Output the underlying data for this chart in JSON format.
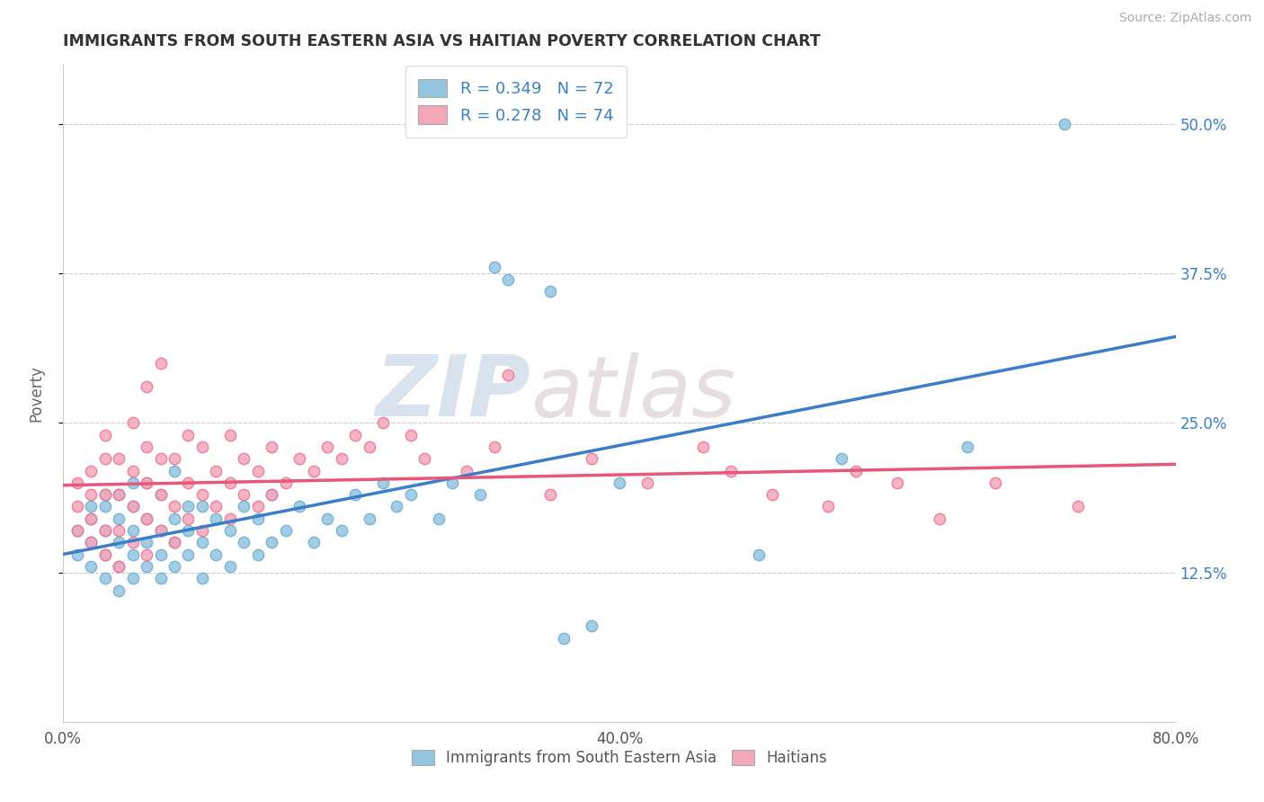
{
  "title": "IMMIGRANTS FROM SOUTH EASTERN ASIA VS HAITIAN POVERTY CORRELATION CHART",
  "source_text": "Source: ZipAtlas.com",
  "ylabel": "Poverty",
  "xlim": [
    0.0,
    0.8
  ],
  "ylim": [
    0.0,
    0.55
  ],
  "xtick_labels": [
    "0.0%",
    "",
    "",
    "",
    "40.0%",
    "",
    "",
    "",
    "80.0%"
  ],
  "xtick_positions": [
    0.0,
    0.1,
    0.2,
    0.3,
    0.4,
    0.5,
    0.6,
    0.7,
    0.8
  ],
  "ytick_labels": [
    "12.5%",
    "25.0%",
    "37.5%",
    "50.0%"
  ],
  "ytick_positions": [
    0.125,
    0.25,
    0.375,
    0.5
  ],
  "watermark_zip": "ZIP",
  "watermark_atlas": "atlas",
  "blue_color": "#92C5DE",
  "pink_color": "#F4A7B9",
  "blue_line_color": "#3A7DC9",
  "pink_line_color": "#E8567A",
  "blue_edge_color": "#6aadd5",
  "pink_edge_color": "#f07090",
  "legend_R_color": "#3B82C4",
  "R_blue": 0.349,
  "N_blue": 72,
  "R_pink": 0.278,
  "N_pink": 74,
  "blue_scatter_x": [
    0.01,
    0.01,
    0.02,
    0.02,
    0.02,
    0.02,
    0.03,
    0.03,
    0.03,
    0.03,
    0.03,
    0.04,
    0.04,
    0.04,
    0.04,
    0.04,
    0.05,
    0.05,
    0.05,
    0.05,
    0.05,
    0.06,
    0.06,
    0.06,
    0.06,
    0.07,
    0.07,
    0.07,
    0.07,
    0.08,
    0.08,
    0.08,
    0.08,
    0.09,
    0.09,
    0.09,
    0.1,
    0.1,
    0.1,
    0.11,
    0.11,
    0.12,
    0.12,
    0.13,
    0.13,
    0.14,
    0.14,
    0.15,
    0.15,
    0.16,
    0.17,
    0.18,
    0.19,
    0.2,
    0.21,
    0.22,
    0.23,
    0.24,
    0.25,
    0.27,
    0.28,
    0.3,
    0.31,
    0.32,
    0.35,
    0.36,
    0.38,
    0.4,
    0.5,
    0.56,
    0.65,
    0.72
  ],
  "blue_scatter_y": [
    0.14,
    0.16,
    0.13,
    0.15,
    0.17,
    0.18,
    0.12,
    0.14,
    0.16,
    0.18,
    0.19,
    0.11,
    0.13,
    0.15,
    0.17,
    0.19,
    0.12,
    0.14,
    0.16,
    0.18,
    0.2,
    0.13,
    0.15,
    0.17,
    0.2,
    0.12,
    0.14,
    0.16,
    0.19,
    0.13,
    0.15,
    0.17,
    0.21,
    0.14,
    0.16,
    0.18,
    0.12,
    0.15,
    0.18,
    0.14,
    0.17,
    0.13,
    0.16,
    0.15,
    0.18,
    0.14,
    0.17,
    0.15,
    0.19,
    0.16,
    0.18,
    0.15,
    0.17,
    0.16,
    0.19,
    0.17,
    0.2,
    0.18,
    0.19,
    0.17,
    0.2,
    0.19,
    0.38,
    0.37,
    0.36,
    0.07,
    0.08,
    0.2,
    0.14,
    0.22,
    0.23,
    0.5
  ],
  "pink_scatter_x": [
    0.01,
    0.01,
    0.01,
    0.02,
    0.02,
    0.02,
    0.02,
    0.03,
    0.03,
    0.03,
    0.03,
    0.03,
    0.04,
    0.04,
    0.04,
    0.04,
    0.05,
    0.05,
    0.05,
    0.05,
    0.06,
    0.06,
    0.06,
    0.06,
    0.06,
    0.07,
    0.07,
    0.07,
    0.07,
    0.08,
    0.08,
    0.08,
    0.09,
    0.09,
    0.09,
    0.1,
    0.1,
    0.1,
    0.11,
    0.11,
    0.12,
    0.12,
    0.12,
    0.13,
    0.13,
    0.14,
    0.14,
    0.15,
    0.15,
    0.16,
    0.17,
    0.18,
    0.19,
    0.2,
    0.21,
    0.22,
    0.23,
    0.25,
    0.26,
    0.29,
    0.31,
    0.32,
    0.35,
    0.38,
    0.42,
    0.46,
    0.48,
    0.51,
    0.55,
    0.57,
    0.6,
    0.63,
    0.67,
    0.73
  ],
  "pink_scatter_y": [
    0.16,
    0.18,
    0.2,
    0.15,
    0.17,
    0.19,
    0.21,
    0.14,
    0.16,
    0.19,
    0.22,
    0.24,
    0.13,
    0.16,
    0.19,
    0.22,
    0.15,
    0.18,
    0.21,
    0.25,
    0.14,
    0.17,
    0.2,
    0.23,
    0.28,
    0.16,
    0.19,
    0.22,
    0.3,
    0.15,
    0.18,
    0.22,
    0.17,
    0.2,
    0.24,
    0.16,
    0.19,
    0.23,
    0.18,
    0.21,
    0.17,
    0.2,
    0.24,
    0.19,
    0.22,
    0.18,
    0.21,
    0.19,
    0.23,
    0.2,
    0.22,
    0.21,
    0.23,
    0.22,
    0.24,
    0.23,
    0.25,
    0.24,
    0.22,
    0.21,
    0.23,
    0.29,
    0.19,
    0.22,
    0.2,
    0.23,
    0.21,
    0.19,
    0.18,
    0.21,
    0.2,
    0.17,
    0.2,
    0.18
  ]
}
